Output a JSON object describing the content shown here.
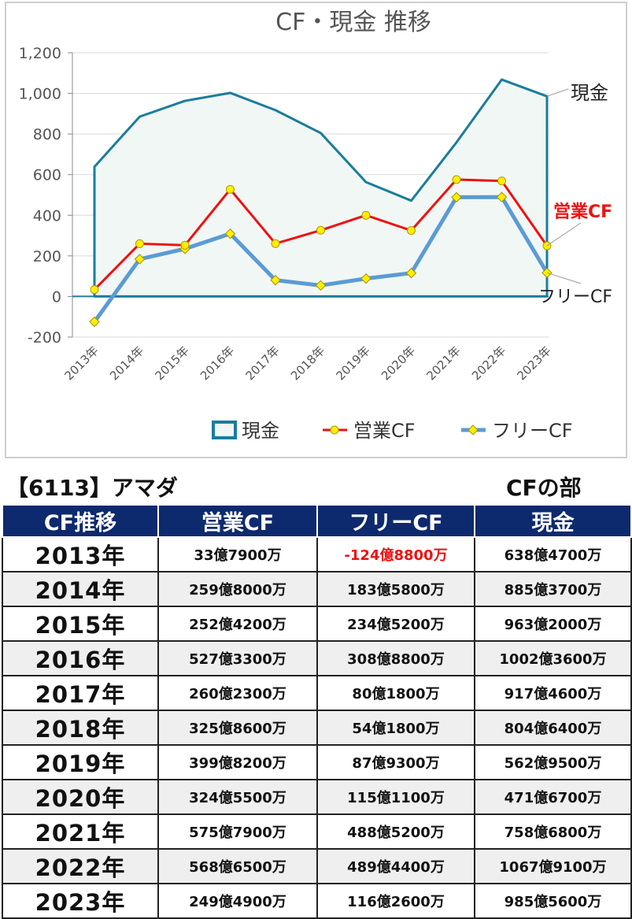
{
  "chart_data": {
    "type": "line",
    "title": "CF・現金 推移",
    "categories": [
      "2013年",
      "2014年",
      "2015年",
      "2016年",
      "2017年",
      "2018年",
      "2019年",
      "2020年",
      "2021年",
      "2022年",
      "2023年"
    ],
    "ylim": [
      -200,
      1200
    ],
    "yticks": [
      -200,
      0,
      200,
      400,
      600,
      800,
      1000,
      1200
    ],
    "ytick_labels": [
      "-200",
      "0",
      "200",
      "400",
      "600",
      "800",
      "1,000",
      "1,200"
    ],
    "grid": true,
    "legend_position": "bottom",
    "series": [
      {
        "name": "現金",
        "style": "area",
        "color": "#1a7d9c",
        "fill": "#f1f7f4",
        "values": [
          638.47,
          885.37,
          963.2,
          1002.36,
          917.46,
          804.64,
          562.95,
          471.67,
          758.68,
          1067.91,
          985.56
        ]
      },
      {
        "name": "営業CF",
        "style": "line-marker",
        "color": "#ee1111",
        "marker": "#ffee00",
        "values": [
          33.79,
          259.8,
          252.42,
          527.33,
          260.23,
          325.86,
          399.82,
          324.55,
          575.79,
          568.65,
          249.49
        ]
      },
      {
        "name": "フリーCF",
        "style": "line-marker",
        "color": "#5b9bd5",
        "marker": "#ffee00",
        "values": [
          -124.88,
          183.58,
          234.52,
          308.88,
          80.18,
          54.18,
          87.93,
          115.11,
          488.52,
          489.44,
          116.26
        ]
      }
    ],
    "annotations": [
      {
        "text": "現金",
        "series": "現金",
        "color": "#222222"
      },
      {
        "text": "営業CF",
        "series": "営業CF",
        "color": "#ee1111"
      },
      {
        "text": "フリーCF",
        "series": "フリーCF",
        "color": "#222222"
      }
    ]
  },
  "table": {
    "company": "【6113】アマダ",
    "section": "CFの部",
    "headers": [
      "CF推移",
      "営業CF",
      "フリーCF",
      "現金"
    ],
    "rows": [
      {
        "year": "2013年",
        "op": "33億7900万",
        "free": "-124億8800万",
        "cash": "638億4700万"
      },
      {
        "year": "2014年",
        "op": "259億8000万",
        "free": "183億5800万",
        "cash": "885億3700万"
      },
      {
        "year": "2015年",
        "op": "252億4200万",
        "free": "234億5200万",
        "cash": "963億2000万"
      },
      {
        "year": "2016年",
        "op": "527億3300万",
        "free": "308億8800万",
        "cash": "1002億3600万"
      },
      {
        "year": "2017年",
        "op": "260億2300万",
        "free": "80億1800万",
        "cash": "917億4600万"
      },
      {
        "year": "2018年",
        "op": "325億8600万",
        "free": "54億1800万",
        "cash": "804億6400万"
      },
      {
        "year": "2019年",
        "op": "399億8200万",
        "free": "87億9300万",
        "cash": "562億9500万"
      },
      {
        "year": "2020年",
        "op": "324億5500万",
        "free": "115億1100万",
        "cash": "471億6700万"
      },
      {
        "year": "2021年",
        "op": "575億7900万",
        "free": "488億5200万",
        "cash": "758億6800万"
      },
      {
        "year": "2022年",
        "op": "568億6500万",
        "free": "489億4400万",
        "cash": "1067億9100万"
      },
      {
        "year": "2023年",
        "op": "249億4900万",
        "free": "116億2600万",
        "cash": "985億5600万"
      }
    ]
  }
}
